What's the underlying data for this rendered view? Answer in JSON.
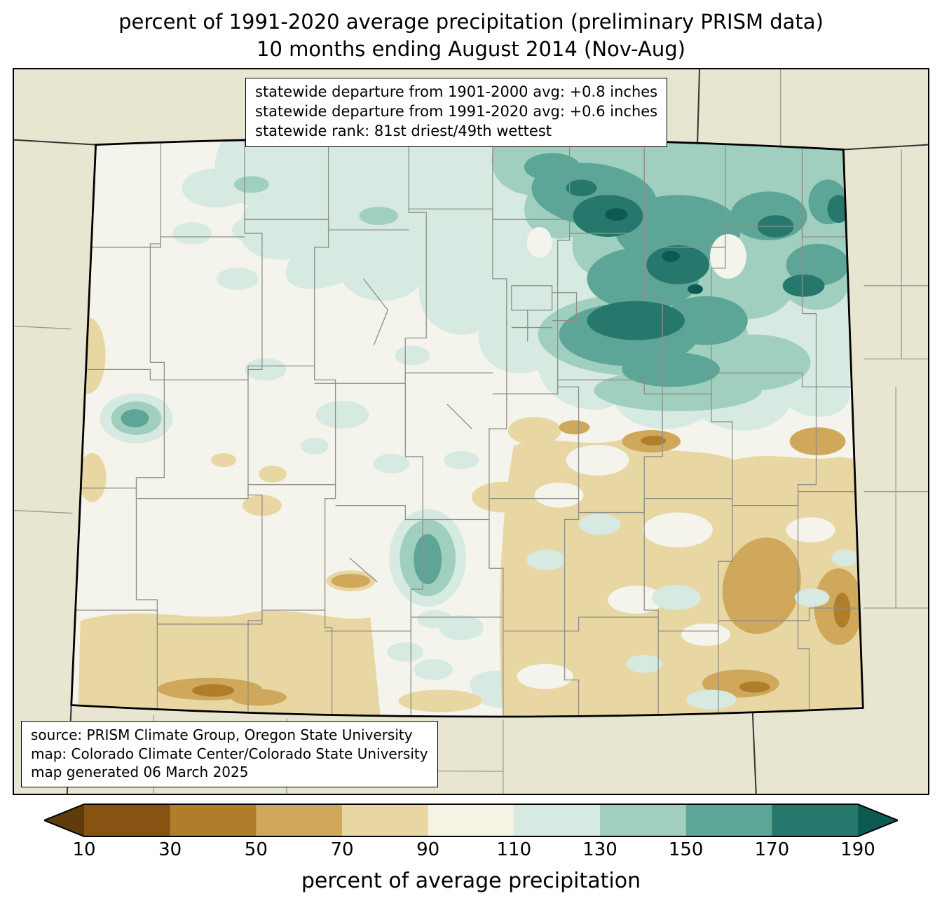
{
  "title": {
    "line1": "percent of 1991-2020 average precipitation (preliminary PRISM data)",
    "line2": "10 months ending August 2014 (Nov-Aug)"
  },
  "stats_box": {
    "lines": [
      "statewide departure from 1901-2000 avg: +0.8 inches",
      "statewide departure from 1991-2020 avg: +0.6 inches",
      "statewide rank: 81st driest/49th wettest"
    ]
  },
  "source_box": {
    "lines": [
      "source: PRISM Climate Group, Oregon State University",
      "map: Colorado Climate Center/Colorado State University",
      "map generated 06 March 2025"
    ]
  },
  "colorbar": {
    "label": "percent of average precipitation",
    "ticks": [
      "10",
      "30",
      "50",
      "70",
      "90",
      "110",
      "130",
      "150",
      "170",
      "190"
    ],
    "arrow_left_color": "#5e3c0c",
    "arrow_right_color": "#0c5a51",
    "segment_colors": [
      "#865312",
      "#b07d2a",
      "#cfa85c",
      "#e8d7a2",
      "#f5f3e4",
      "#d6eae1",
      "#a0cfc0",
      "#5da697",
      "#27786c"
    ]
  },
  "map": {
    "region": "Colorado",
    "background_color": "#e8e5d0",
    "base_color": "#f4f4ed"
  },
  "chart_data": {
    "type": "heatmap",
    "title": "percent of 1991-2020 average precipitation (preliminary PRISM data), 10 months ending August 2014 (Nov-Aug)",
    "region": "Colorado",
    "colorbar_label": "percent of average precipitation",
    "bin_edges": [
      10,
      30,
      50,
      70,
      90,
      110,
      130,
      150,
      170,
      190
    ],
    "bin_colors": [
      "#5e3c0c",
      "#865312",
      "#b07d2a",
      "#cfa85c",
      "#e8d7a2",
      "#f5f3e4",
      "#d6eae1",
      "#a0cfc0",
      "#5da697",
      "#27786c",
      "#0c5a51"
    ],
    "open_ended_arrows": "below 10 and above 190",
    "statewide_departure_from_1901_2000_avg_inches": 0.8,
    "statewide_departure_from_1991_2020_avg_inches": 0.6,
    "statewide_rank": "81st driest/49th wettest"
  }
}
